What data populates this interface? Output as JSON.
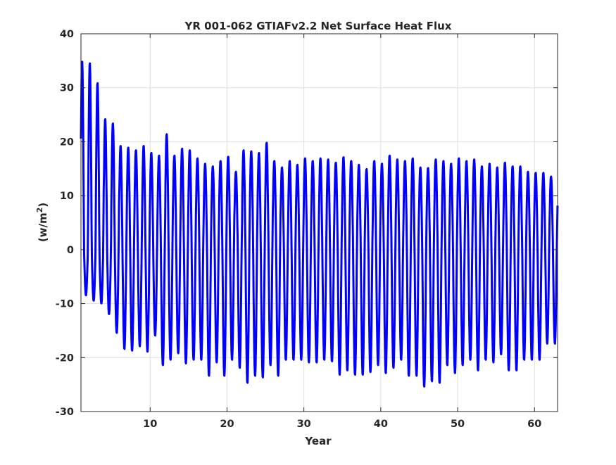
{
  "chart_data": {
    "type": "line",
    "title": "YR 001-062 GTIAFv2.2 Net Surface Heat Flux",
    "xlabel": "Year",
    "ylabel": "(w/m",
    "ylabel_superscript": "2",
    "ylabel_suffix": ")",
    "xlim": [
      1,
      63
    ],
    "ylim": [
      -30,
      40
    ],
    "xticks": [
      10,
      20,
      30,
      40,
      50,
      60
    ],
    "yticks": [
      -30,
      -20,
      -10,
      0,
      10,
      20,
      30,
      40
    ],
    "grid": true,
    "line_color": "#0000ff",
    "series": [
      {
        "cycle": "annual",
        "year_start": [
          1,
          2,
          3,
          4,
          5,
          6,
          7,
          8,
          9,
          10,
          11,
          12,
          13,
          14,
          15,
          16,
          17,
          18,
          19,
          20,
          21,
          22,
          23,
          24,
          25,
          26,
          27,
          28,
          29,
          30,
          31,
          32,
          33,
          34,
          35,
          36,
          37,
          38,
          39,
          40,
          41,
          42,
          43,
          44,
          45,
          46,
          47,
          48,
          49,
          50,
          51,
          52,
          53,
          54,
          55,
          56,
          57,
          58,
          59,
          60,
          61,
          62
        ],
        "annual_max": [
          35,
          34.7,
          31,
          24.3,
          23.5,
          19.3,
          19,
          18.5,
          19.3,
          18,
          17.5,
          21.5,
          17.5,
          18.8,
          18.5,
          17,
          16,
          15.5,
          16.5,
          17.3,
          14.5,
          18.5,
          18.3,
          18,
          19.9,
          16.5,
          15.3,
          16.5,
          15.8,
          17,
          16.5,
          17,
          16.8,
          16.2,
          17.2,
          16.5,
          15.8,
          15,
          16.5,
          16,
          17.5,
          16.8,
          16.5,
          17,
          15.3,
          15.2,
          16.8,
          16.5,
          16,
          17,
          16.5,
          16.8,
          15.5,
          16,
          15.3,
          16.2,
          15.5,
          15.5,
          14.5,
          14.3,
          14.3,
          13.6
        ],
        "annual_min": [
          -8.5,
          -9.5,
          -10,
          -12,
          -15.5,
          -18.5,
          -18.8,
          -18,
          -19,
          -16,
          -21.5,
          -20.5,
          -19.3,
          -21.2,
          -20.5,
          -20.5,
          -23.5,
          -21,
          -23.5,
          -20.5,
          -22,
          -24.8,
          -23.5,
          -23.8,
          -21.5,
          -23.5,
          -20.5,
          -20.5,
          -20.5,
          -21,
          -21,
          -20.5,
          -20.8,
          -23.3,
          -22.5,
          -23.3,
          -23.3,
          -22.8,
          -21.5,
          -23,
          -22,
          -20.5,
          -23.5,
          -23.5,
          -25.5,
          -24.5,
          -24.8,
          -21.5,
          -23,
          -21.5,
          -20.5,
          -22.5,
          -20.5,
          -21,
          -19.5,
          -22.5,
          -22.5,
          -20.5,
          -20.5,
          -20.5,
          -17.5,
          -17.5
        ]
      }
    ]
  }
}
